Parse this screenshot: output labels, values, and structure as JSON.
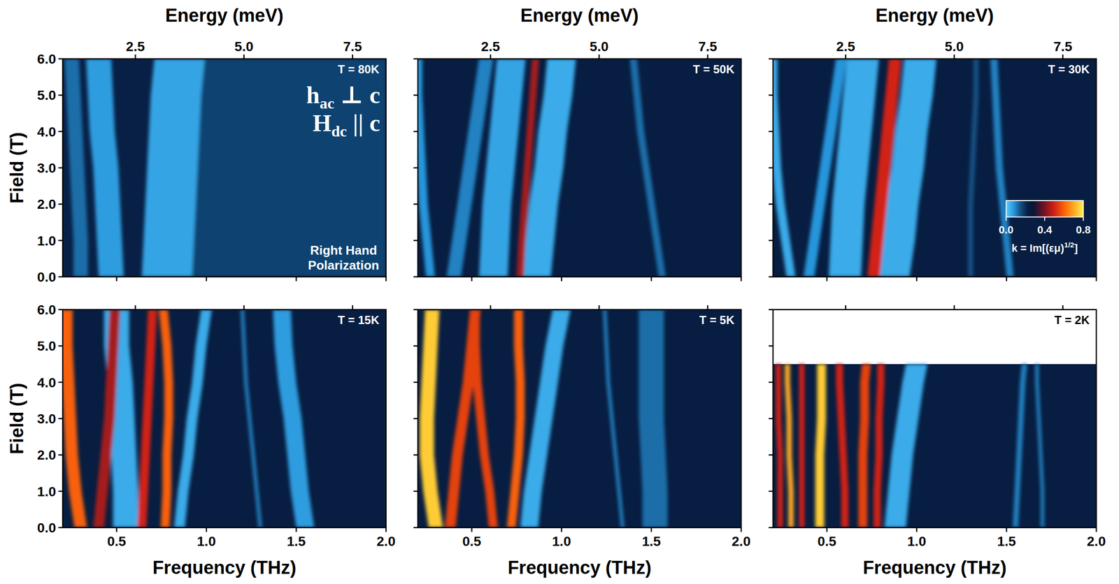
{
  "chart_data": {
    "type": "heatmap",
    "x_label": "Frequency (THz)",
    "x2_label": "Energy (meV)",
    "y_label": "Field (T)",
    "xlim": [
      0.2,
      2.0
    ],
    "xticks": [
      0.5,
      {
        "value": 1.0,
        "label": "1.0"
      },
      1.5,
      {
        "value": 2.0,
        "label": "2.0"
      }
    ],
    "x2lim": [
      0.827,
      8.271
    ],
    "x2ticks": [
      2.5,
      {
        "value": 5.0,
        "label": "5.0"
      },
      {
        "value": 7.5,
        "label": "7.5"
      }
    ],
    "ylim": [
      0,
      6
    ],
    "yticks": [
      {
        "value": 0,
        "label": "0.0"
      },
      {
        "value": 1,
        "label": "1.0"
      },
      {
        "value": 2,
        "label": "2.0"
      },
      {
        "value": 3,
        "label": "3.0"
      },
      {
        "value": 4,
        "label": "4.0"
      },
      {
        "value": 5,
        "label": "5.0"
      },
      {
        "value": 6,
        "label": "6.0"
      }
    ],
    "annotations": [
      {
        "text": "h",
        "sub": "ac",
        "after": " ⊥ c"
      },
      {
        "text": "H",
        "sub": "dc",
        "after": " || c"
      }
    ],
    "polarization": "Right Hand Polarization",
    "colorbar": {
      "label": {
        "text": "k = Im[(εμ)",
        "sup": "1/2",
        "after": "]"
      },
      "range": [
        0,
        0.8
      ],
      "ticks": [
        {
          "value": 0,
          "label": "0.0"
        },
        0.4,
        0.8
      ]
    },
    "panels": [
      {
        "title": "T = 80K",
        "field": [
          0,
          1,
          2,
          3,
          4,
          5,
          6
        ],
        "background_k": 0.22,
        "modes": [
          {
            "frequency": [
              1.45,
              1.45,
              1.45,
              1.45,
              1.45,
              1.45,
              1.45
            ],
            "width": 1.1,
            "k": 0.17
          },
          {
            "frequency": [
              0.78,
              0.79,
              0.8,
              0.81,
              0.82,
              0.83,
              0.85
            ],
            "width": 0.28,
            "k": 0.06
          },
          {
            "frequency": [
              0.47,
              0.46,
              0.45,
              0.44,
              0.42,
              0.41,
              0.4
            ],
            "width": 0.14,
            "k": 0.07
          },
          {
            "frequency": [
              0.3,
              0.3,
              0.29,
              0.28,
              0.27,
              0.26,
              0.25
            ],
            "width": 0.08,
            "k": 0.12
          }
        ]
      },
      {
        "title": "T = 50K",
        "field": [
          0,
          1,
          2,
          3,
          4,
          5,
          6
        ],
        "background_k": 0.24,
        "modes": [
          {
            "frequency": [
              0.86,
              0.88,
              0.9,
              0.93,
              0.95,
              0.98,
              1.0
            ],
            "width": 0.16,
            "k": 0.05
          },
          {
            "frequency": [
              0.62,
              0.63,
              0.64,
              0.66,
              0.68,
              0.7,
              0.72
            ],
            "width": 0.16,
            "k": 0.06
          },
          {
            "frequency": [
              0.27,
              0.25,
              0.23,
              0.22,
              0.21,
              0.2,
              0.2
            ],
            "width": 0.05,
            "k": 0.08
          },
          {
            "frequency": [
              0.4,
              0.43,
              0.46,
              0.49,
              0.52,
              0.55,
              0.58
            ],
            "width": 0.08,
            "k": 0.1
          },
          {
            "frequency": [
              1.56,
              1.53,
              1.5,
              1.47,
              1.44,
              1.42,
              1.4
            ],
            "width": 0.04,
            "k": 0.12
          },
          {
            "frequency": [
              0.77,
              0.78,
              0.795,
              0.81,
              0.825,
              0.84,
              0.855
            ],
            "width": 0.04,
            "k": 0.45
          }
        ]
      },
      {
        "title": "T = 30K",
        "field": [
          0,
          1,
          2,
          3,
          4,
          5,
          6
        ],
        "background_k": 0.24,
        "modes": [
          {
            "frequency": [
              0.87,
              0.9,
              0.92,
              0.95,
              0.97,
              1.0,
              1.02
            ],
            "width": 0.18,
            "k": 0.05
          },
          {
            "frequency": [
              0.6,
              0.61,
              0.62,
              0.64,
              0.66,
              0.68,
              0.7
            ],
            "width": 0.18,
            "k": 0.05
          },
          {
            "frequency": [
              0.3,
              0.27,
              0.24,
              0.22,
              0.21,
              0.2,
              0.2
            ],
            "width": 0.05,
            "k": 0.05
          },
          {
            "frequency": [
              0.4,
              0.43,
              0.46,
              0.49,
              0.52,
              0.55,
              0.58
            ],
            "width": 0.06,
            "k": 0.08
          },
          {
            "frequency": [
              1.52,
              1.5,
              1.48,
              1.46,
              1.45,
              1.44,
              1.43
            ],
            "width": 0.04,
            "k": 0.1
          },
          {
            "frequency": [
              1.3,
              1.3,
              1.3,
              1.31,
              1.32,
              1.33,
              1.33
            ],
            "width": 0.03,
            "k": 0.15
          },
          {
            "frequency": [
              0.76,
              0.78,
              0.8,
              0.82,
              0.84,
              0.86,
              0.88
            ],
            "width": 0.07,
            "k": 0.5
          }
        ]
      },
      {
        "title": "T = 15K",
        "field": [
          0,
          1,
          2,
          3,
          4,
          5,
          6
        ],
        "background_k": 0.24,
        "modes": [
          {
            "frequency": [
              0.55,
              0.55,
              0.54,
              0.53,
              0.52,
              0.5,
              0.5
            ],
            "width": 0.14,
            "k": 0.05
          },
          {
            "frequency": [
              0.85,
              0.87,
              0.9,
              0.92,
              0.95,
              0.97,
              1.0
            ],
            "width": 0.06,
            "k": 0.05
          },
          {
            "frequency": [
              1.3,
              1.28,
              1.26,
              1.24,
              1.22,
              1.21,
              1.2
            ],
            "width": 0.02,
            "k": 0.1
          },
          {
            "frequency": [
              1.55,
              1.52,
              1.5,
              1.48,
              1.45,
              1.43,
              1.42
            ],
            "width": 0.1,
            "k": 0.07
          },
          {
            "frequency": [
              0.4,
              0.42,
              0.44,
              0.46,
              0.47,
              0.48,
              0.49
            ],
            "width": 0.06,
            "k": 0.45
          },
          {
            "frequency": [
              0.64,
              0.65,
              0.66,
              0.67,
              0.68,
              0.69,
              0.7
            ],
            "width": 0.05,
            "k": 0.5
          },
          {
            "frequency": [
              0.3,
              0.27,
              0.25,
              0.24,
              0.23,
              0.22,
              0.22
            ],
            "width": 0.07,
            "k": 0.6
          },
          {
            "frequency": [
              0.77,
              0.78,
              0.78,
              0.79,
              0.79,
              0.78,
              0.76
            ],
            "width": 0.05,
            "k": 0.6
          }
        ]
      },
      {
        "title": "T = 5K",
        "field": [
          0,
          1,
          2,
          3,
          4,
          5,
          6
        ],
        "background_k": 0.24,
        "modes": [
          {
            "frequency": [
              0.82,
              0.84,
              0.87,
              0.9,
              0.93,
              0.96,
              1.0
            ],
            "width": 0.1,
            "k": 0.05
          },
          {
            "frequency": [
              1.34,
              1.32,
              1.3,
              1.28,
              1.26,
              1.25,
              1.24
            ],
            "width": 0.02,
            "k": 0.1
          },
          {
            "frequency": [
              1.52,
              1.52,
              1.51,
              1.5,
              1.5,
              1.5,
              1.5
            ],
            "width": 0.14,
            "k": 0.12
          },
          {
            "frequency": [
              0.38,
              0.4,
              0.42,
              0.45,
              0.48,
              0.5,
              0.52
            ],
            "width": 0.06,
            "k": 0.55
          },
          {
            "frequency": [
              0.62,
              0.6,
              0.57,
              0.55,
              0.53,
              0.52,
              0.52
            ],
            "width": 0.05,
            "k": 0.55
          },
          {
            "frequency": [
              0.72,
              0.74,
              0.76,
              0.77,
              0.77,
              0.76,
              0.76
            ],
            "width": 0.05,
            "k": 0.6
          },
          {
            "frequency": [
              0.3,
              0.27,
              0.25,
              0.25,
              0.26,
              0.27,
              0.28
            ],
            "width": 0.08,
            "k": 0.75
          }
        ]
      },
      {
        "title": "T = 2K",
        "field": [
          0,
          1,
          2,
          3,
          4,
          4.5
        ],
        "background_k": 0.24,
        "modes": [
          {
            "frequency": [
              0.88,
              0.9,
              0.92,
              0.95,
              0.98,
              1.0
            ],
            "width": 0.12,
            "k": 0.05
          },
          {
            "frequency": [
              1.55,
              1.56,
              1.57,
              1.58,
              1.59,
              1.6
            ],
            "width": 0.03,
            "k": 0.1
          },
          {
            "frequency": [
              1.7,
              1.7,
              1.69,
              1.68,
              1.67,
              1.67
            ],
            "width": 0.02,
            "k": 0.1
          },
          {
            "frequency": [
              0.24,
              0.24,
              0.24,
              0.23,
              0.23,
              0.23
            ],
            "width": 0.03,
            "k": 0.5
          },
          {
            "frequency": [
              0.36,
              0.36,
              0.36,
              0.36,
              0.36,
              0.36
            ],
            "width": 0.03,
            "k": 0.5
          },
          {
            "frequency": [
              0.6,
              0.6,
              0.59,
              0.58,
              0.57,
              0.57
            ],
            "width": 0.04,
            "k": 0.5
          },
          {
            "frequency": [
              0.78,
              0.78,
              0.79,
              0.79,
              0.8,
              0.8
            ],
            "width": 0.04,
            "k": 0.5
          },
          {
            "frequency": [
              0.7,
              0.7,
              0.7,
              0.71,
              0.71,
              0.72
            ],
            "width": 0.05,
            "k": 0.55
          },
          {
            "frequency": [
              0.3,
              0.3,
              0.29,
              0.29,
              0.28,
              0.28
            ],
            "width": 0.03,
            "k": 0.7
          },
          {
            "frequency": [
              0.46,
              0.46,
              0.46,
              0.47,
              0.47,
              0.47
            ],
            "width": 0.05,
            "k": 0.75
          }
        ]
      }
    ]
  }
}
